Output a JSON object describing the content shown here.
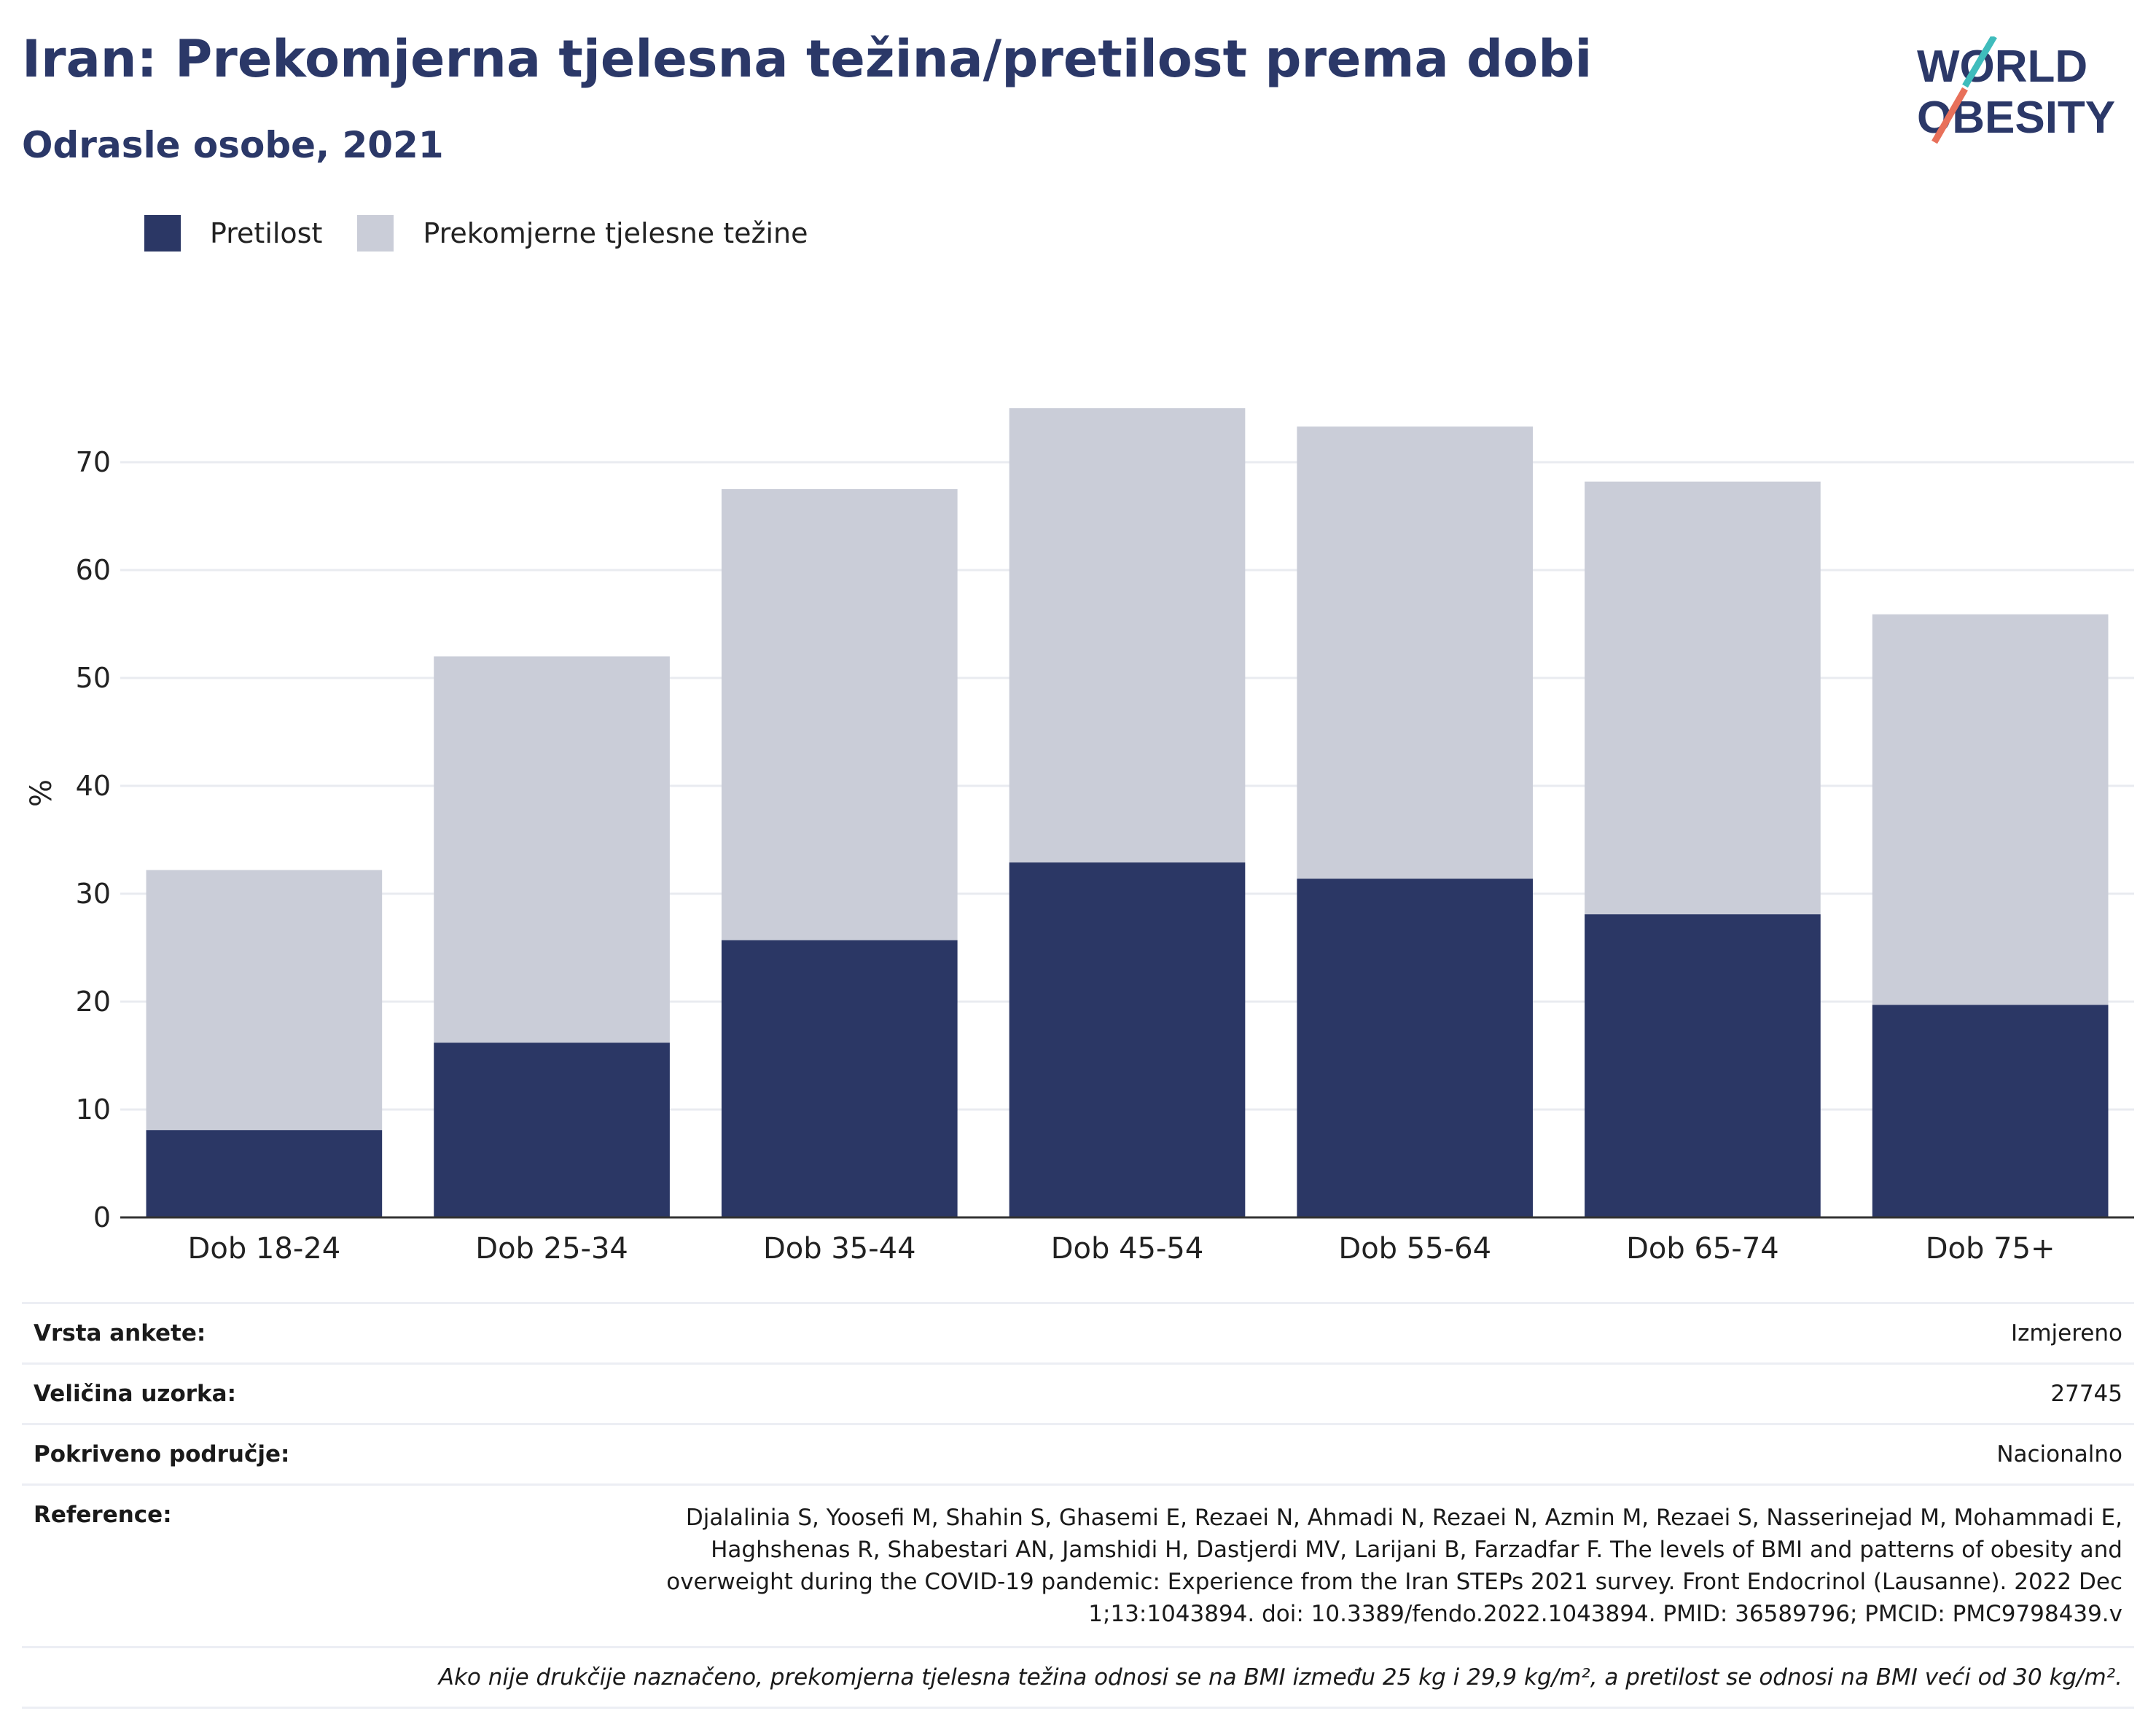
{
  "header": {
    "title": "Iran: Prekomjerna tjelesna težina/pretilost prema dobi",
    "subtitle": "Odrasle osobe, 2021"
  },
  "logo": {
    "line1": "WORLD",
    "line2": "OBESITY"
  },
  "colors": {
    "obesity": "#2b3765",
    "overweight": "#cacdd8",
    "title": "#2b3868",
    "logo_teal": "#3fbcbc",
    "logo_coral": "#e8705a"
  },
  "legend": [
    {
      "label": "Pretilost",
      "color": "#2b3765"
    },
    {
      "label": "Prekomjerne tjelesne težine",
      "color": "#cacdd8"
    }
  ],
  "chart_data": {
    "type": "bar",
    "stacked": true,
    "categories": [
      "Dob 18-24",
      "Dob 25-34",
      "Dob 35-44",
      "Dob 45-54",
      "Dob 55-64",
      "Dob 65-74",
      "Dob 75+"
    ],
    "series": [
      {
        "name": "Pretilost",
        "values": [
          8.1,
          16.2,
          25.7,
          32.9,
          31.4,
          28.1,
          19.7
        ]
      },
      {
        "name": "Prekomjerne tjelesne težine",
        "values": [
          24.1,
          35.8,
          41.8,
          42.1,
          41.9,
          40.1,
          36.2
        ]
      }
    ],
    "title": "",
    "xlabel": "",
    "ylabel": "%",
    "ylim": [
      0,
      80
    ],
    "yticks": [
      0,
      10,
      20,
      30,
      40,
      50,
      60,
      70
    ],
    "grid": true,
    "legend_position": "top-left"
  },
  "info": [
    {
      "label": "Vrsta ankete:",
      "value": "Izmjereno"
    },
    {
      "label": "Veličina uzorka:",
      "value": "27745"
    },
    {
      "label": "Pokriveno područje:",
      "value": "Nacionalno"
    }
  ],
  "references": {
    "label": "Reference:",
    "value": "Djalalinia S, Yoosefi M, Shahin S, Ghasemi E, Rezaei N, Ahmadi N, Rezaei N, Azmin M, Rezaei S, Nasserinejad M, Mohammadi E, Haghshenas R, Shabestari AN, Jamshidi H, Dastjerdi MV, Larijani B, Farzadfar F. The levels of BMI and patterns of obesity and overweight during the COVID-19 pandemic: Experience from the Iran STEPs 2021 survey. Front Endocrinol (Lausanne). 2022 Dec 1;13:1043894. doi: 10.3389/fendo.2022.1043894. PMID: 36589796; PMCID: PMC9798439.v"
  },
  "footnote": "Ako nije drukčije naznačeno, prekomjerna tjelesna težina odnosi se na BMI između 25 kg i 29,9 kg/m², a pretilost se odnosi na BMI veći od 30 kg/m²."
}
